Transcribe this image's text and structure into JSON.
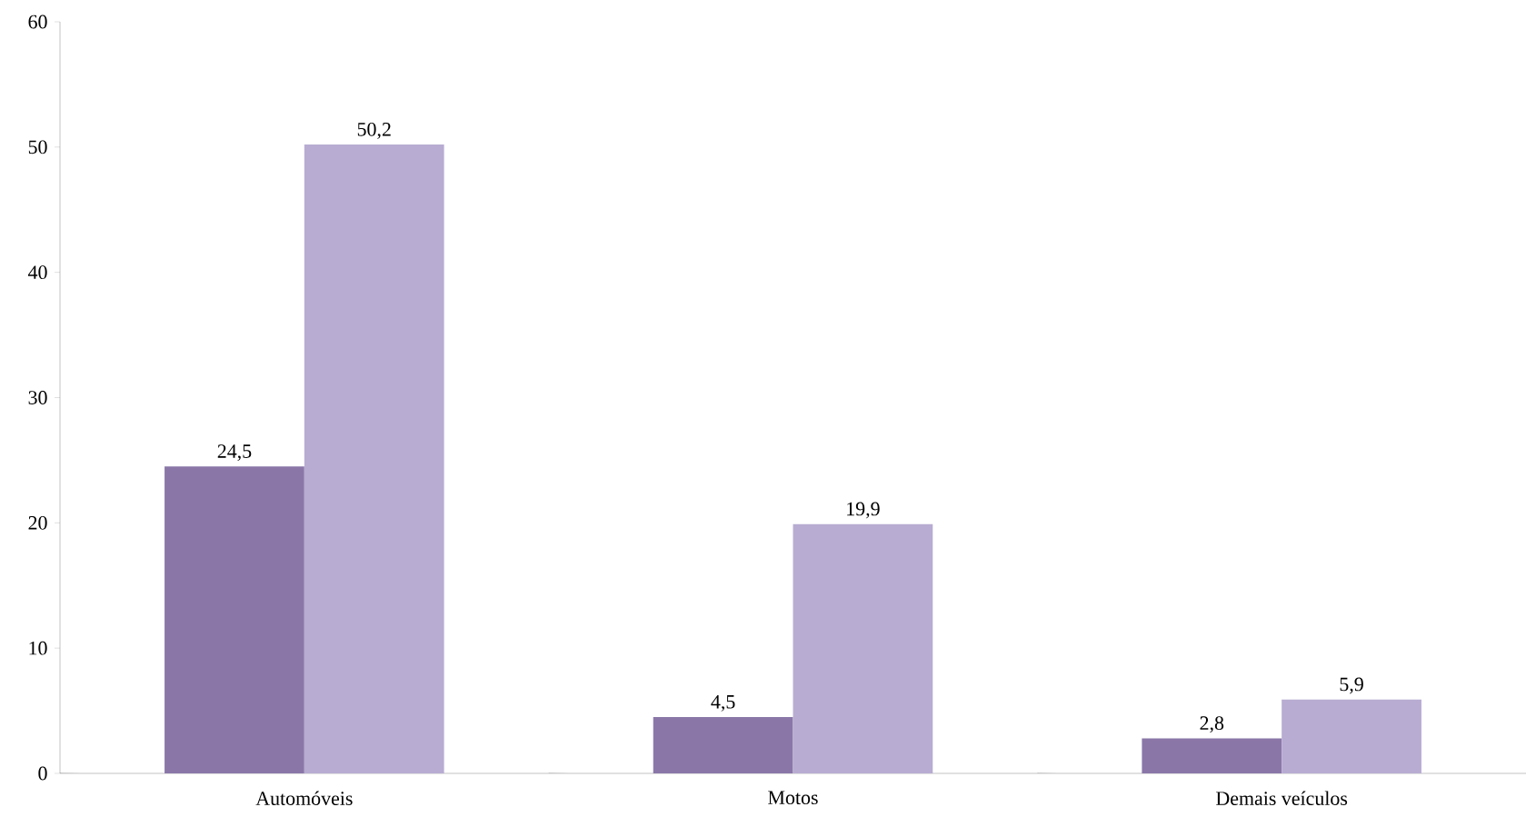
{
  "chart_data": {
    "type": "bar",
    "categories": [
      "Automóveis",
      "Motos",
      "Demais veículos"
    ],
    "series": [
      {
        "color": "#8a77a8",
        "values": [
          24.5,
          4.5,
          2.8
        ],
        "value_labels": [
          "24,5",
          "4,5",
          "2,8"
        ]
      },
      {
        "color": "#b8acd2",
        "values": [
          50.2,
          19.9,
          5.9
        ],
        "value_labels": [
          "50,2",
          "19,9",
          "5,9"
        ]
      }
    ],
    "ylim": [
      0,
      60
    ],
    "yticks": [
      0,
      10,
      20,
      30,
      40,
      50,
      60
    ],
    "grid": false
  }
}
